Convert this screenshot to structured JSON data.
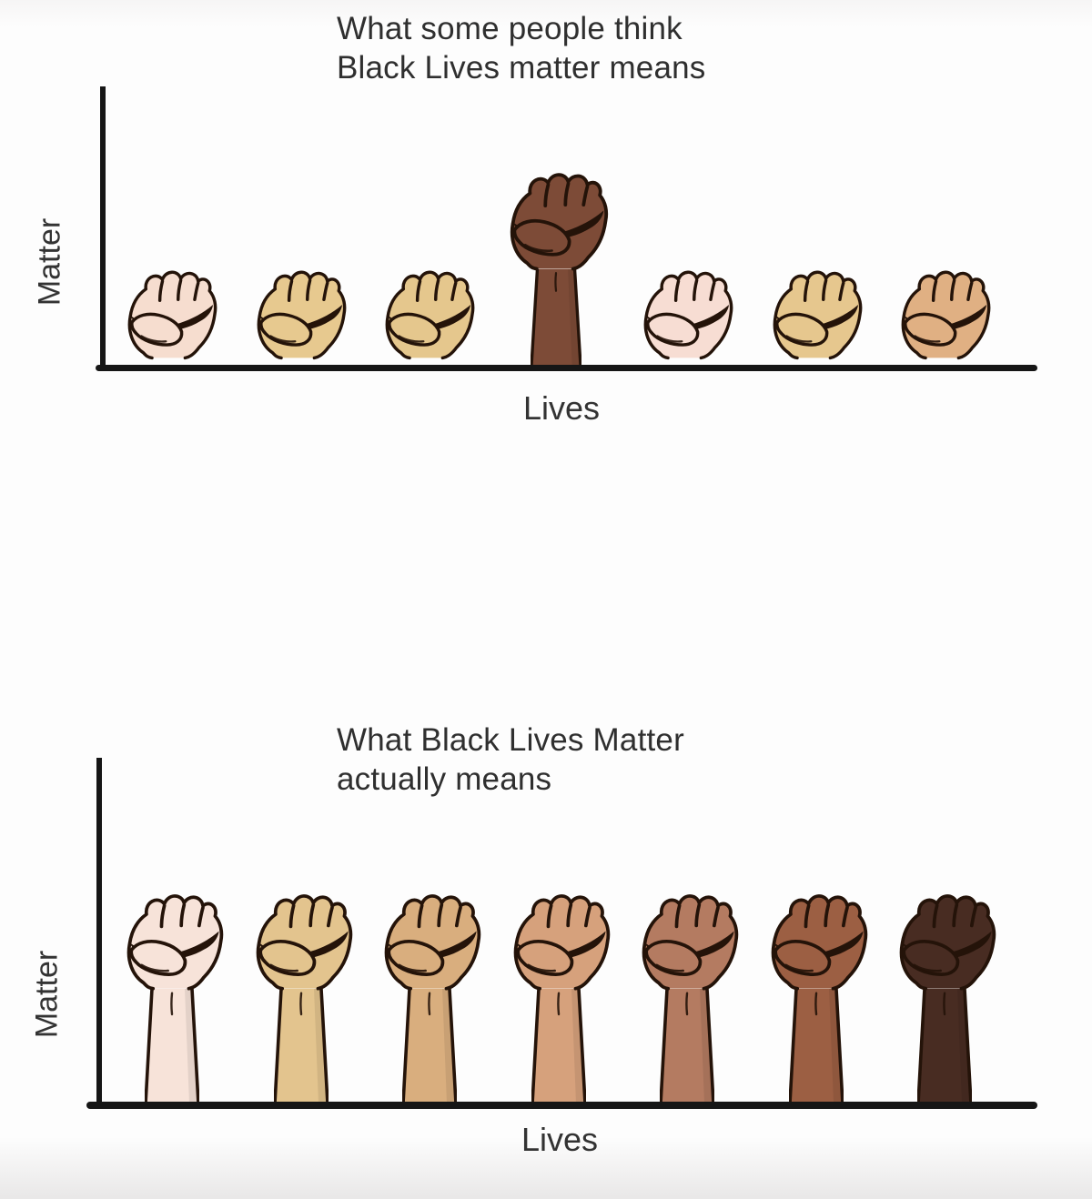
{
  "meta": {
    "background": "#fdfdfd",
    "axis_color": "#161616",
    "text_color": "#2f2f2f",
    "fist_outline_color": "#241309"
  },
  "charts": [
    {
      "title_lines": [
        "What some people think",
        "Black Lives matter means"
      ],
      "ylabel": "Matter",
      "xlabel": "Lives",
      "fists": [
        {
          "tone": "pale",
          "skin": "#f6ddcf",
          "height": "short"
        },
        {
          "tone": "sand-tan",
          "skin": "#e7c98f",
          "height": "short"
        },
        {
          "tone": "sand-tan",
          "skin": "#e5c78d",
          "height": "short"
        },
        {
          "tone": "dark-brown",
          "skin": "#7d4b37",
          "height": "tall"
        },
        {
          "tone": "pale",
          "skin": "#f7ddd3",
          "height": "short"
        },
        {
          "tone": "sand-tan",
          "skin": "#e6c78e",
          "height": "short"
        },
        {
          "tone": "light-brown",
          "skin": "#e0b083",
          "height": "short"
        }
      ]
    },
    {
      "title_lines": [
        "What Black Lives Matter",
        "actually means"
      ],
      "ylabel": "Matter",
      "xlabel": "Lives",
      "fists": [
        {
          "tone": "lightest-pale",
          "skin": "#f7e3d9",
          "height": "tall"
        },
        {
          "tone": "sand",
          "skin": "#e3c48e",
          "height": "tall"
        },
        {
          "tone": "tan",
          "skin": "#d9ae7e",
          "height": "tall"
        },
        {
          "tone": "warm-tan",
          "skin": "#d6a17c",
          "height": "tall"
        },
        {
          "tone": "chestnut",
          "skin": "#b47b61",
          "height": "tall"
        },
        {
          "tone": "brown",
          "skin": "#9c5f43",
          "height": "tall"
        },
        {
          "tone": "darkest-brown",
          "skin": "#482c22",
          "height": "tall"
        }
      ]
    }
  ],
  "chart_data": [
    {
      "type": "bar",
      "bar_glyph": "raised-fist",
      "title": "What some people think Black Lives matter means",
      "xlabel": "Lives",
      "ylabel": "Matter",
      "categories": [
        "pale",
        "sand-tan",
        "sand-tan",
        "dark-brown",
        "pale",
        "sand-tan",
        "light-brown"
      ],
      "values": [
        0.36,
        0.36,
        0.36,
        0.7,
        0.36,
        0.36,
        0.36
      ],
      "ylim": [
        0,
        1
      ],
      "grid": false,
      "legend": false,
      "note": "Seven raised fists of varied skin tones; only the dark-brown fist is raised higher than the rest"
    },
    {
      "type": "bar",
      "bar_glyph": "raised-fist",
      "title": "What Black Lives Matter actually means",
      "xlabel": "Lives",
      "ylabel": "Matter",
      "categories": [
        "lightest-pale",
        "sand",
        "tan",
        "warm-tan",
        "chestnut",
        "brown",
        "darkest-brown"
      ],
      "values": [
        0.62,
        0.62,
        0.62,
        0.62,
        0.62,
        0.62,
        0.62
      ],
      "ylim": [
        0,
        1
      ],
      "grid": false,
      "legend": false,
      "note": "Seven raised fists ordered light to dark, all at equal height"
    }
  ]
}
